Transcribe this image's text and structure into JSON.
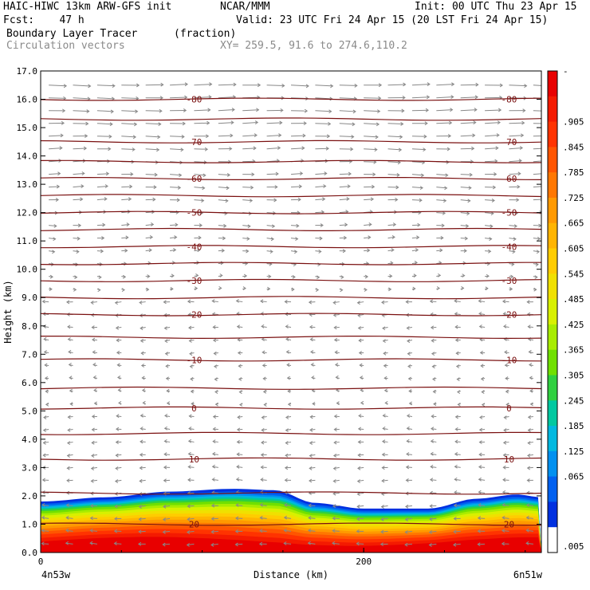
{
  "header": {
    "model": "HAIC-HIWC 13km ARW-GFS init",
    "org": "NCAR/MMM",
    "init": "Init: 00 UTC Thu 23 Apr 15",
    "fcst": "Fcst:    47 h",
    "valid": "Valid: 23 UTC Fri 24 Apr 15 (20 LST Fri 24 Apr 15)",
    "field": "Boundary Layer Tracer",
    "units": "(fraction)",
    "vectors": "Circulation vectors",
    "xy": "XY= 259.5, 91.6 to 274.6,110.2"
  },
  "chart_data": {
    "type": "heatmap",
    "xlabel": "Distance (km)",
    "ylabel": "Height (km)",
    "xlim": [
      0,
      310
    ],
    "ylim": [
      0.0,
      17.0
    ],
    "x_ticks": [
      "0",
      "200"
    ],
    "x_end_labels": [
      "4n53w",
      "6n51w"
    ],
    "y_ticks": [
      "0.0",
      "1.0",
      "2.0",
      "3.0",
      "4.0",
      "5.0",
      "6.0",
      "7.0",
      "8.0",
      "9.0",
      "10.0",
      "11.0",
      "12.0",
      "13.0",
      "14.0",
      "15.0",
      "16.0",
      "17.0"
    ],
    "colorbar": {
      "labels": [
        "-",
        ".905",
        ".845",
        ".785",
        ".725",
        ".665",
        ".605",
        ".545",
        ".485",
        ".425",
        ".365",
        ".305",
        ".245",
        ".185",
        ".125",
        ".065",
        ".005"
      ],
      "colors": [
        "#e80000",
        "#f41a00",
        "#ff3300",
        "#ff5500",
        "#ff7700",
        "#ff9900",
        "#ffb400",
        "#ffcc00",
        "#f0e000",
        "#d8f000",
        "#a8ec00",
        "#70e000",
        "#30d040",
        "#00c8a0",
        "#00b8e0",
        "#0090f0",
        "#0060f0",
        "#0030e0",
        "#ffffff"
      ]
    },
    "tracer_top_km": [
      {
        "x": 0,
        "top": 1.8
      },
      {
        "x": 40,
        "top": 1.95
      },
      {
        "x": 80,
        "top": 2.15
      },
      {
        "x": 120,
        "top": 2.25
      },
      {
        "x": 145,
        "top": 2.2
      },
      {
        "x": 170,
        "top": 1.75
      },
      {
        "x": 200,
        "top": 1.55
      },
      {
        "x": 240,
        "top": 1.55
      },
      {
        "x": 270,
        "top": 1.9
      },
      {
        "x": 295,
        "top": 2.05
      },
      {
        "x": 310,
        "top": 1.95
      }
    ],
    "isotherms": [
      {
        "label": "-80",
        "y": 16.0
      },
      {
        "label": "-70",
        "y": 14.5
      },
      {
        "label": "-60",
        "y": 13.2
      },
      {
        "label": "-50",
        "y": 12.0
      },
      {
        "label": "-40",
        "y": 10.8
      },
      {
        "label": "-30",
        "y": 9.6
      },
      {
        "label": "-20",
        "y": 8.4
      },
      {
        "label": "-10",
        "y": 6.8
      },
      {
        "label": "0",
        "y": 5.1
      },
      {
        "label": "10",
        "y": 3.3
      },
      {
        "label": "20",
        "y": 1.0
      }
    ],
    "unlabeled_isotherms_km": [
      15.3,
      13.8,
      12.6,
      11.4,
      10.2,
      9.0,
      7.6,
      5.8,
      4.2,
      2.1
    ],
    "contour_label_x_km": [
      95,
      290
    ]
  }
}
